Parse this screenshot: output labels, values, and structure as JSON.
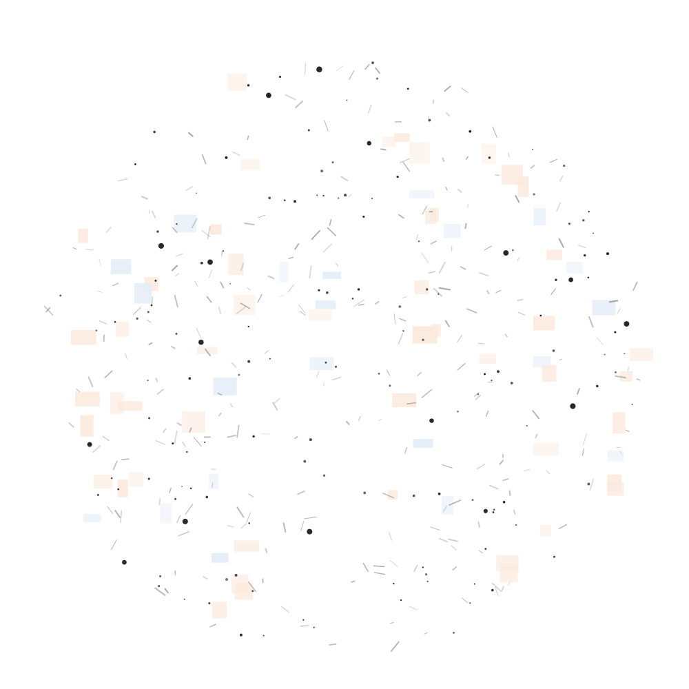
{
  "image": {
    "background_color": "#ffffff",
    "dot_color": "#111111",
    "streak_color": "#8a8a8a",
    "tint_warm": "#fbe9dc",
    "tint_cool": "#e3ecf8"
  }
}
